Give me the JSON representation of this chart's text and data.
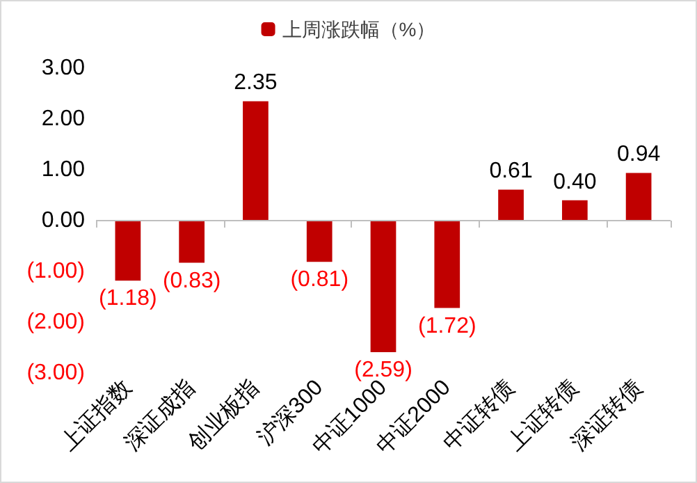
{
  "chart_data": {
    "type": "bar",
    "categories": [
      "上证指数",
      "深证成指",
      "创业板指",
      "沪深300",
      "中证1000",
      "中证2000",
      "中证转债",
      "上证转债",
      "深证转债"
    ],
    "series": [
      {
        "name": "上周涨跌幅（%）",
        "color": "#c00000",
        "values": [
          -1.18,
          -0.83,
          2.35,
          -0.81,
          -2.59,
          -1.72,
          0.61,
          0.4,
          0.94
        ],
        "value_labels": [
          "(1.18)",
          "(0.83)",
          "2.35",
          "(0.81)",
          "(2.59)",
          "(1.72)",
          "0.61",
          "0.40",
          "0.94"
        ]
      }
    ],
    "ylim": [
      -3,
      3
    ],
    "yticks": [
      {
        "value": -3,
        "label": "(3.00)"
      },
      {
        "value": -2,
        "label": "(2.00)"
      },
      {
        "value": -1,
        "label": "(1.00)"
      },
      {
        "value": 0,
        "label": "0.00"
      },
      {
        "value": 1,
        "label": "1.00"
      },
      {
        "value": 2,
        "label": "2.00"
      },
      {
        "value": 3,
        "label": "3.00"
      }
    ],
    "ref_lines": [
      {
        "axis": "y",
        "value": 0,
        "color": "#bfbfbf"
      }
    ],
    "grid": false,
    "legend": "top"
  }
}
